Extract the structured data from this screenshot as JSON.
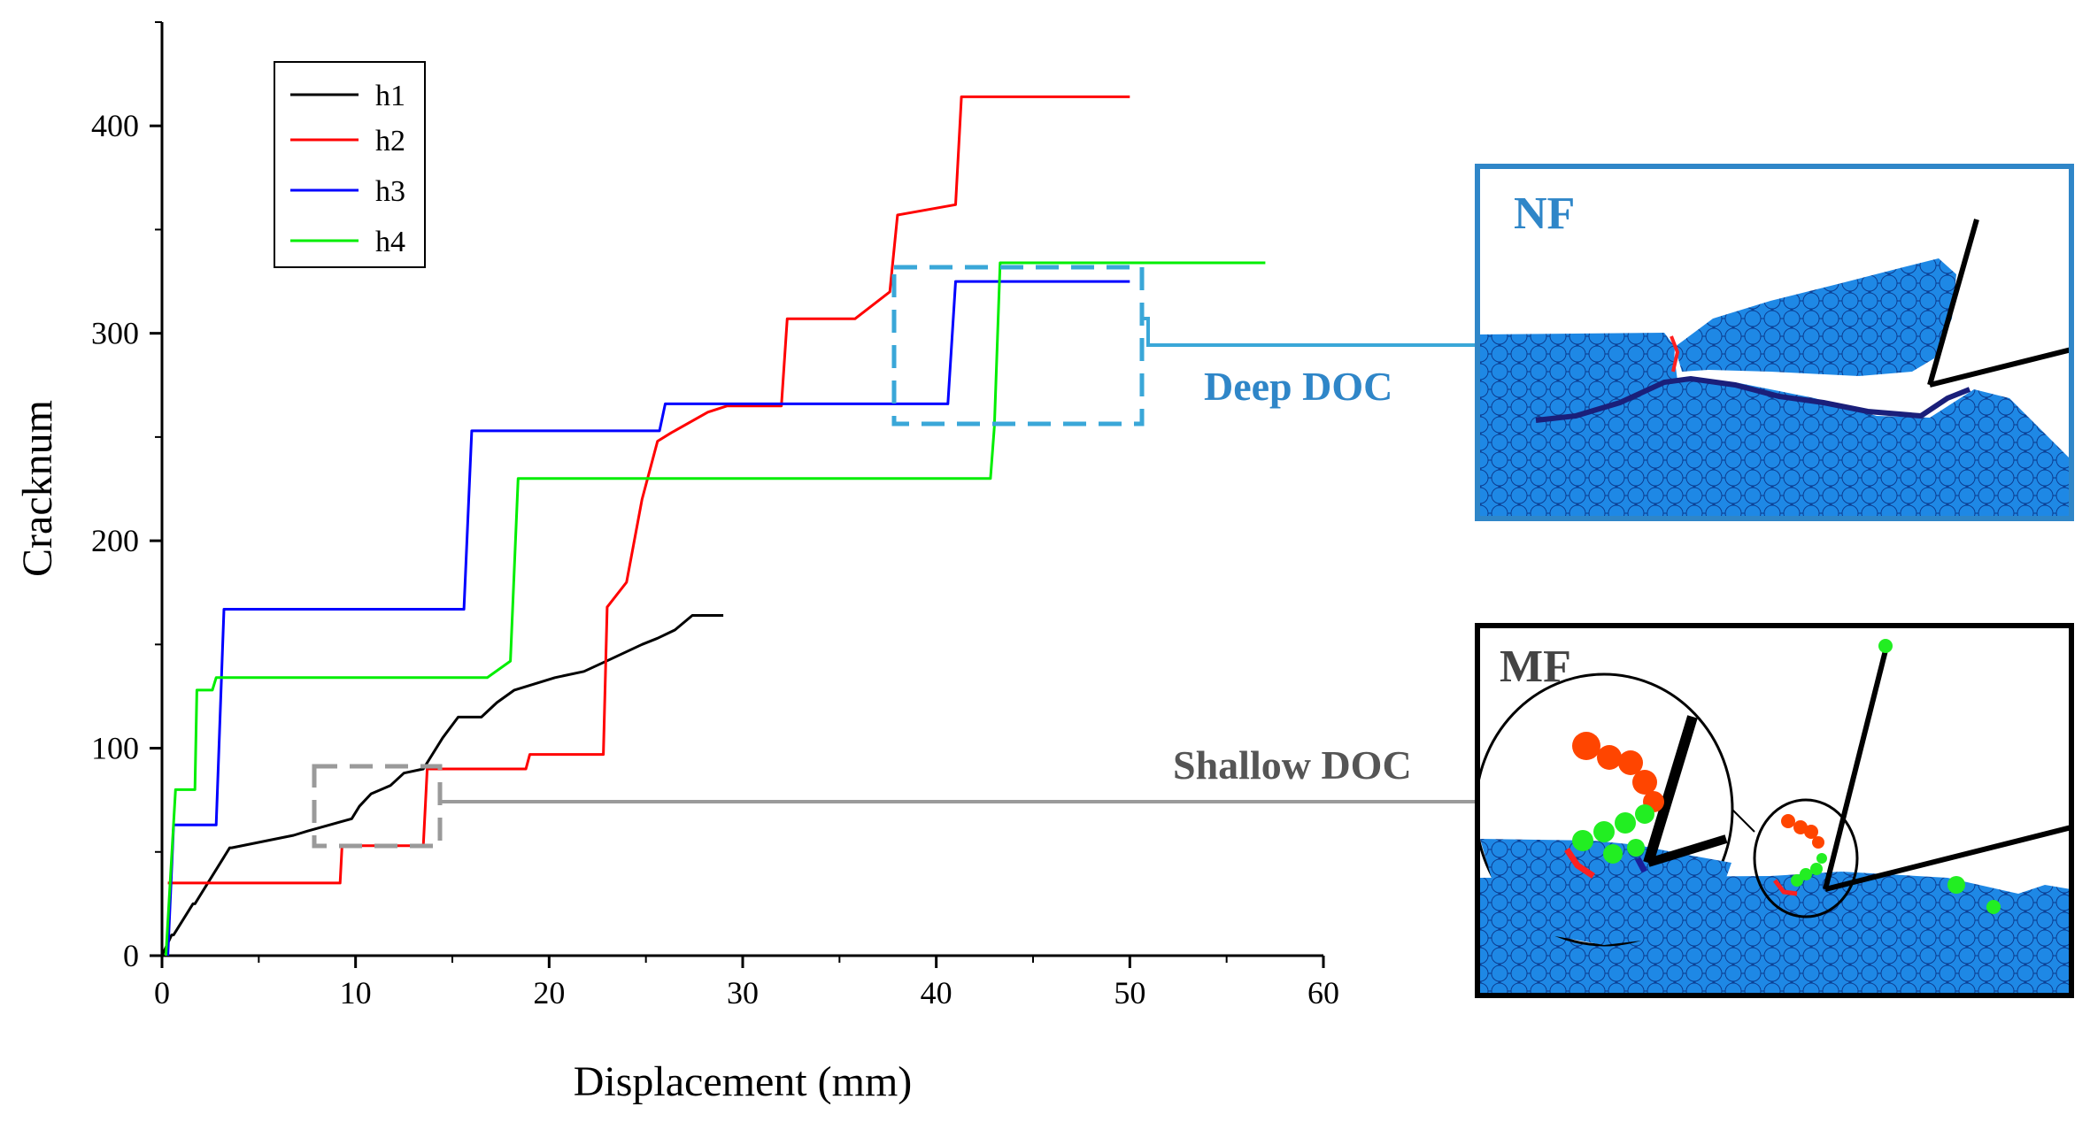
{
  "chart_data": {
    "type": "line",
    "title": "",
    "xlabel": "Displacement (mm)",
    "ylabel": "Cracknum",
    "xlim": [
      0,
      60
    ],
    "ylim": [
      0,
      450
    ],
    "xticks": [
      0,
      10,
      20,
      30,
      40,
      50,
      60
    ],
    "yticks": [
      0,
      100,
      200,
      300,
      400
    ],
    "grid": false,
    "legend_position": "top-left",
    "series": [
      {
        "name": "h1",
        "color": "#000000",
        "x": [
          0,
          0.5,
          0.6,
          1.6,
          1.7,
          3.5,
          3.6,
          6.8,
          7.5,
          9.8,
          10.2,
          10.8,
          11.8,
          12.5,
          13.5,
          14.5,
          15.3,
          16.5,
          17.3,
          18.2,
          20.3,
          21.8,
          23.2,
          24.8,
          25.6,
          26.5,
          27.4,
          29.0
        ],
        "y": [
          0,
          10,
          10,
          25,
          25,
          52,
          52,
          58,
          60,
          66,
          72,
          78,
          82,
          88,
          90,
          105,
          115,
          115,
          122,
          128,
          134,
          137,
          143,
          150,
          153,
          157,
          164,
          164
        ]
      },
      {
        "name": "h2",
        "color": "#ff0000",
        "x": [
          0.3,
          9.2,
          9.3,
          13.5,
          13.7,
          18.8,
          19.0,
          22.8,
          23.0,
          24.0,
          24.8,
          25.6,
          26.3,
          28.2,
          29.2,
          32.0,
          32.3,
          35.8,
          37.6,
          38.0,
          41.0,
          41.3,
          50.0
        ],
        "y": [
          35,
          35,
          53,
          53,
          90,
          90,
          97,
          97,
          168,
          180,
          220,
          248,
          252,
          262,
          265,
          265,
          307,
          307,
          320,
          357,
          362,
          414,
          414
        ]
      },
      {
        "name": "h3",
        "color": "#0000ff",
        "x": [
          0.3,
          0.6,
          2.8,
          3.2,
          15.6,
          16.0,
          25.7,
          26.0,
          40.6,
          41.0,
          50.0
        ],
        "y": [
          0,
          63,
          63,
          167,
          167,
          253,
          253,
          266,
          266,
          325,
          325
        ]
      },
      {
        "name": "h4",
        "color": "#00ee00",
        "x": [
          0.2,
          0.7,
          1.7,
          1.8,
          2.6,
          2.8,
          16.8,
          18.0,
          18.4,
          42.8,
          43.0,
          43.3,
          57.0
        ],
        "y": [
          0,
          80,
          80,
          128,
          128,
          134,
          134,
          142,
          230,
          230,
          255,
          334,
          334
        ]
      }
    ],
    "annotations": [
      "Deep DOC",
      "Shallow DOC",
      "NF",
      "MF"
    ]
  },
  "colors": {
    "deep_box": "#3aa7d8",
    "shallow_box": "#9a9a9a",
    "particle_blue": "#1e88e5",
    "particle_red": "#ff4500",
    "particle_green": "#22ee22",
    "annot_text_blue": "#2f86c8",
    "annot_text_gray": "#555555"
  }
}
